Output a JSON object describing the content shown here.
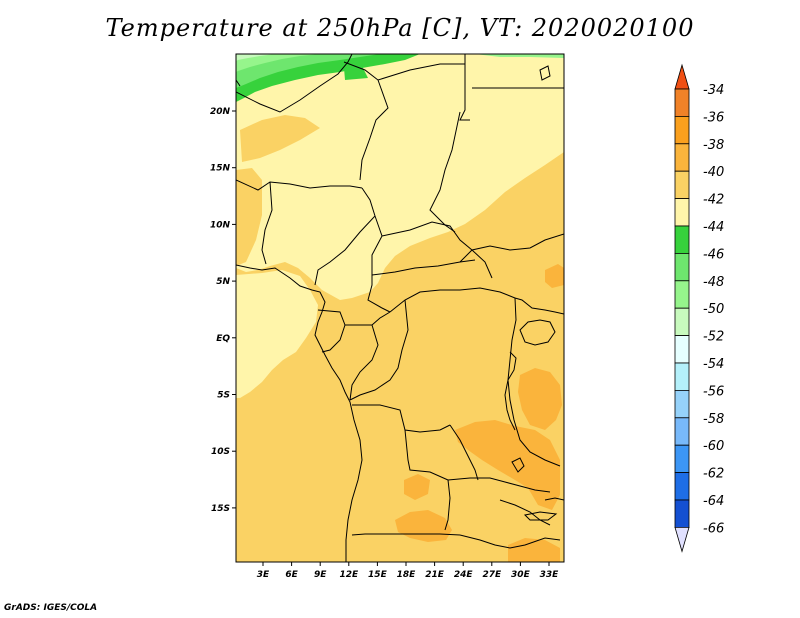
{
  "title": "Temperature at 250hPa [C], VT: 2020020100",
  "footer": "GrADS: IGES/COLA",
  "map": {
    "lat_labels": [
      {
        "lat": 20,
        "label": "20N"
      },
      {
        "lat": 15,
        "label": "15N"
      },
      {
        "lat": 10,
        "label": "10N"
      },
      {
        "lat": 5,
        "label": "5N"
      },
      {
        "lat": 0,
        "label": "EQ"
      },
      {
        "lat": -5,
        "label": "5S"
      },
      {
        "lat": -10,
        "label": "10S"
      },
      {
        "lat": -15,
        "label": "15S"
      }
    ],
    "lon_labels": [
      {
        "lon": 3,
        "label": "3E"
      },
      {
        "lon": 6,
        "label": "6E"
      },
      {
        "lon": 9,
        "label": "9E"
      },
      {
        "lon": 12,
        "label": "12E"
      },
      {
        "lon": 15,
        "label": "15E"
      },
      {
        "lon": 18,
        "label": "18E"
      },
      {
        "lon": 21,
        "label": "21E"
      },
      {
        "lon": 24,
        "label": "24E"
      },
      {
        "lon": 27,
        "label": "27E"
      },
      {
        "lon": 30,
        "label": "30E"
      },
      {
        "lon": 33,
        "label": "33E"
      }
    ],
    "lon_range": [
      0,
      35
    ],
    "lat_range": [
      -20,
      25
    ]
  },
  "colorbar": {
    "levels": [
      {
        "value": "-34",
        "color": "#f08228"
      },
      {
        "value": "-36",
        "color": "#faa01e"
      },
      {
        "value": "-38",
        "color": "#fab43c"
      },
      {
        "value": "-40",
        "color": "#fad264"
      },
      {
        "value": "-42",
        "color": "#fff5aa"
      },
      {
        "value": "-44",
        "color": "#37d23c"
      },
      {
        "value": "-46",
        "color": "#6ee66e"
      },
      {
        "value": "-48",
        "color": "#96f58c"
      },
      {
        "value": "-50",
        "color": "#c8fabe"
      },
      {
        "value": "-52",
        "color": "#e6ffff"
      },
      {
        "value": "-54",
        "color": "#b4f0fa"
      },
      {
        "value": "-56",
        "color": "#96d2fa"
      },
      {
        "value": "-58",
        "color": "#78b9fa"
      },
      {
        "value": "-60",
        "color": "#3c96f5"
      },
      {
        "value": "-62",
        "color": "#1e6ee6"
      },
      {
        "value": "-64",
        "color": "#1450d2"
      },
      {
        "value": "-66",
        "color": "#0a0a78"
      }
    ],
    "top_cap_color": "#f05014",
    "bottom_cap_color": "#e1e1ff"
  },
  "colors": {
    "base_fill": "#fad264",
    "lighter_fill": "#fff5aa",
    "warm_fill": "#fab43c",
    "green_dark": "#37d23c",
    "green_mid": "#6ee66e",
    "green_light": "#96f58c",
    "green_pale": "#c8fabe"
  }
}
